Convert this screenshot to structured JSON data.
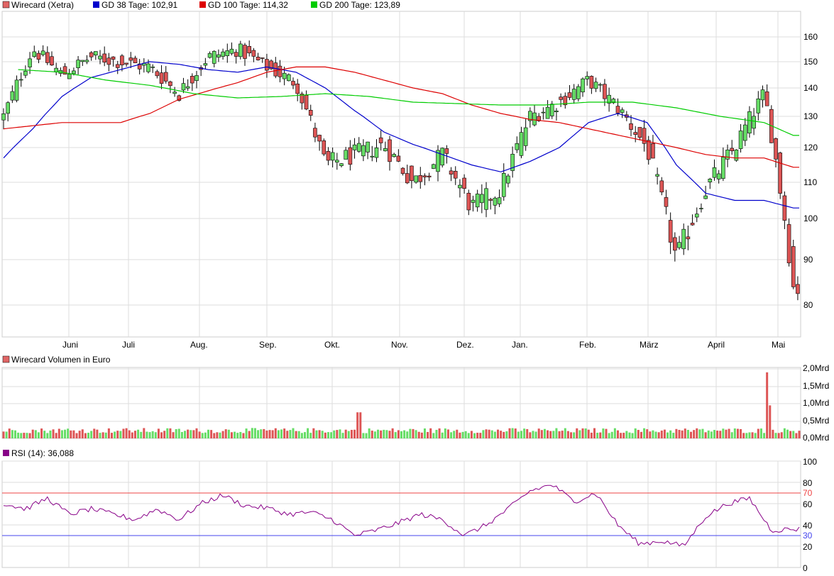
{
  "price_panel": {
    "legend": [
      {
        "label": "Wirecard (Xetra)",
        "color": "#e06666"
      },
      {
        "label": "GD 38 Tage: 102,91",
        "color": "#0000cc"
      },
      {
        "label": "GD 100 Tage: 114,32",
        "color": "#dd0000"
      },
      {
        "label": "GD 200 Tage: 123,89",
        "color": "#00bb00"
      }
    ],
    "y_ticks": [
      "160",
      "150",
      "140",
      "130",
      "120",
      "110",
      "100",
      "90",
      "80"
    ],
    "x_months": [
      "Juni",
      "Juli",
      "Aug.",
      "Sep.",
      "Okt.",
      "Nov.",
      "Dez.",
      "Jan.",
      "Feb.",
      "März",
      "April",
      "Mai"
    ]
  },
  "volume_panel": {
    "title": "Wirecard Volumen in Euro",
    "y_ticks": [
      "2,0Mrd",
      "1,5Mrd",
      "1,0Mrd",
      "0,5Mrd",
      "0,0Mrd"
    ]
  },
  "rsi_panel": {
    "title": "RSI (14): 36,088",
    "y_ticks": [
      "100",
      "80",
      "60",
      "40",
      "20",
      "0"
    ],
    "overbought_label": "70",
    "oversold_label": "30"
  },
  "colors": {
    "up": "#66dd66",
    "down": "#dd5555",
    "gd38": "#0000cc",
    "gd100": "#dd0000",
    "gd200": "#00cc00",
    "rsi": "#880088",
    "grid": "#dddddd",
    "ob": "#ee4444",
    "os": "#4444ee"
  },
  "chart_data": [
    {
      "type": "line",
      "title": "Wirecard (Xetra)",
      "chart_style": "candlestick",
      "ylim": [
        72,
        168
      ],
      "y_scale": "linear",
      "grid": true,
      "x_tick_labels": [
        "Juni",
        "Juli",
        "Aug.",
        "Sep.",
        "Okt.",
        "Nov.",
        "Dez.",
        "Jan.",
        "Feb.",
        "März",
        "April",
        "Mai"
      ],
      "close_series_approx": {
        "name": "Wirecard (Xetra)",
        "x_index": [
          0,
          20,
          40,
          60,
          80,
          100,
          120,
          140,
          160,
          180,
          200,
          220,
          240,
          260,
          280,
          300,
          320,
          340,
          360,
          380,
          400,
          420,
          440,
          460,
          480,
          500,
          520,
          540
        ],
        "values": [
          130,
          155,
          145,
          152,
          150,
          148,
          138,
          152,
          155,
          148,
          142,
          115,
          118,
          121,
          110,
          118,
          103,
          108,
          130,
          135,
          143,
          133,
          120,
          90,
          108,
          120,
          138,
          84
        ]
      },
      "series": [
        {
          "name": "GD 38 Tage",
          "x_index": [
            0,
            20,
            40,
            60,
            80,
            100,
            120,
            140,
            160,
            180,
            200,
            220,
            240,
            260,
            280,
            300,
            320,
            340,
            360,
            380,
            400,
            420,
            440,
            460,
            480,
            500,
            520,
            540
          ],
          "values": [
            117,
            126,
            137,
            144,
            147,
            150,
            149,
            147,
            146,
            148,
            146,
            140,
            132,
            125,
            121,
            118,
            115,
            113,
            116,
            120,
            128,
            131,
            128,
            115,
            107,
            105,
            105,
            102.91
          ]
        },
        {
          "name": "GD 100 Tage",
          "x_index": [
            0,
            20,
            40,
            60,
            80,
            100,
            120,
            140,
            160,
            180,
            200,
            220,
            240,
            260,
            280,
            300,
            320,
            340,
            360,
            380,
            400,
            420,
            440,
            460,
            480,
            500,
            520,
            540
          ],
          "values": [
            126,
            127,
            128,
            128,
            128,
            131,
            136,
            139,
            142,
            146,
            148,
            148,
            146,
            143,
            140,
            138,
            134,
            131,
            129,
            128,
            126,
            124,
            122,
            120,
            118,
            117,
            117,
            114.32
          ]
        },
        {
          "name": "GD 200 Tage",
          "x_index": [
            10,
            40,
            70,
            100,
            130,
            160,
            190,
            220,
            250,
            280,
            310,
            340,
            370,
            400,
            430,
            460,
            490,
            520,
            540
          ],
          "values": [
            147,
            146,
            143,
            141,
            138,
            136.5,
            137,
            138,
            137,
            135,
            134.5,
            134,
            134,
            135,
            135,
            133,
            130,
            128,
            123.89
          ]
        }
      ]
    },
    {
      "type": "bar",
      "title": "Wirecard Volumen in Euro",
      "ylim": [
        0,
        2.0
      ],
      "y_unit": "Mrd",
      "notable_values": [
        {
          "x_index": 243,
          "value": 0.75
        },
        {
          "x_index": 44,
          "value": 0.28
        },
        {
          "x_index": 522,
          "value": 1.9
        },
        {
          "x_index": 524,
          "value": 0.95
        }
      ],
      "typical_range": [
        0.15,
        0.3
      ]
    },
    {
      "type": "line",
      "title": "RSI (14)",
      "ylim": [
        0,
        100
      ],
      "series": [
        {
          "name": "RSI (14)",
          "x_index": [
            0,
            15,
            30,
            45,
            60,
            75,
            90,
            105,
            120,
            135,
            150,
            165,
            180,
            195,
            210,
            225,
            240,
            255,
            270,
            285,
            300,
            315,
            330,
            345,
            360,
            375,
            390,
            405,
            420,
            435,
            450,
            465,
            480,
            495,
            510,
            525,
            540
          ],
          "values": [
            60,
            55,
            65,
            50,
            55,
            50,
            45,
            55,
            45,
            60,
            68,
            58,
            56,
            50,
            52,
            45,
            30,
            35,
            42,
            50,
            45,
            30,
            40,
            55,
            72,
            78,
            62,
            70,
            40,
            22,
            25,
            20,
            48,
            60,
            65,
            35,
            36.088
          ]
        }
      ],
      "reference_lines": [
        70,
        30
      ]
    }
  ]
}
